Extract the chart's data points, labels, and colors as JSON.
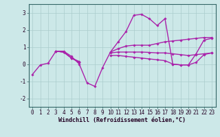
{
  "xlabel": "Windchill (Refroidissement éolien,°C)",
  "x": [
    0,
    1,
    2,
    3,
    4,
    5,
    6,
    7,
    8,
    9,
    10,
    11,
    12,
    13,
    14,
    15,
    16,
    17,
    18,
    19,
    20,
    21,
    22,
    23
  ],
  "series": [
    [
      -0.6,
      -0.05,
      0.05,
      0.75,
      0.75,
      0.45,
      0.0,
      -1.1,
      -1.3,
      -0.2,
      0.7,
      1.3,
      1.9,
      2.85,
      2.9,
      2.65,
      2.25,
      2.65,
      0.0,
      -0.05,
      -0.05,
      0.6,
      1.4,
      1.5
    ],
    [
      null,
      null,
      null,
      0.75,
      0.7,
      0.35,
      0.15,
      null,
      null,
      null,
      0.7,
      0.9,
      1.05,
      1.1,
      1.1,
      1.1,
      1.2,
      1.3,
      1.35,
      1.4,
      1.45,
      1.5,
      1.55,
      1.55
    ],
    [
      null,
      null,
      null,
      0.75,
      0.7,
      0.35,
      0.1,
      null,
      null,
      null,
      0.65,
      0.7,
      0.7,
      0.7,
      0.7,
      0.68,
      0.65,
      0.65,
      0.6,
      0.55,
      0.5,
      0.55,
      0.6,
      0.65
    ],
    [
      null,
      null,
      null,
      0.75,
      0.7,
      0.35,
      0.1,
      null,
      null,
      null,
      0.5,
      0.5,
      0.45,
      0.4,
      0.35,
      0.3,
      0.25,
      0.2,
      0.0,
      -0.05,
      -0.05,
      0.1,
      0.55,
      0.65
    ]
  ],
  "bg_color": "#cce8e8",
  "grid_color": "#aacccc",
  "line_color": "#aa22aa",
  "marker": "D",
  "markersize": 1.8,
  "ylim": [
    -2.5,
    3.5
  ],
  "yticks": [
    -2,
    -1,
    0,
    1,
    2,
    3
  ],
  "xlim": [
    -0.5,
    23.5
  ],
  "linewidth": 1.0,
  "tick_fontsize": 5.5,
  "xlabel_fontsize": 6.0
}
